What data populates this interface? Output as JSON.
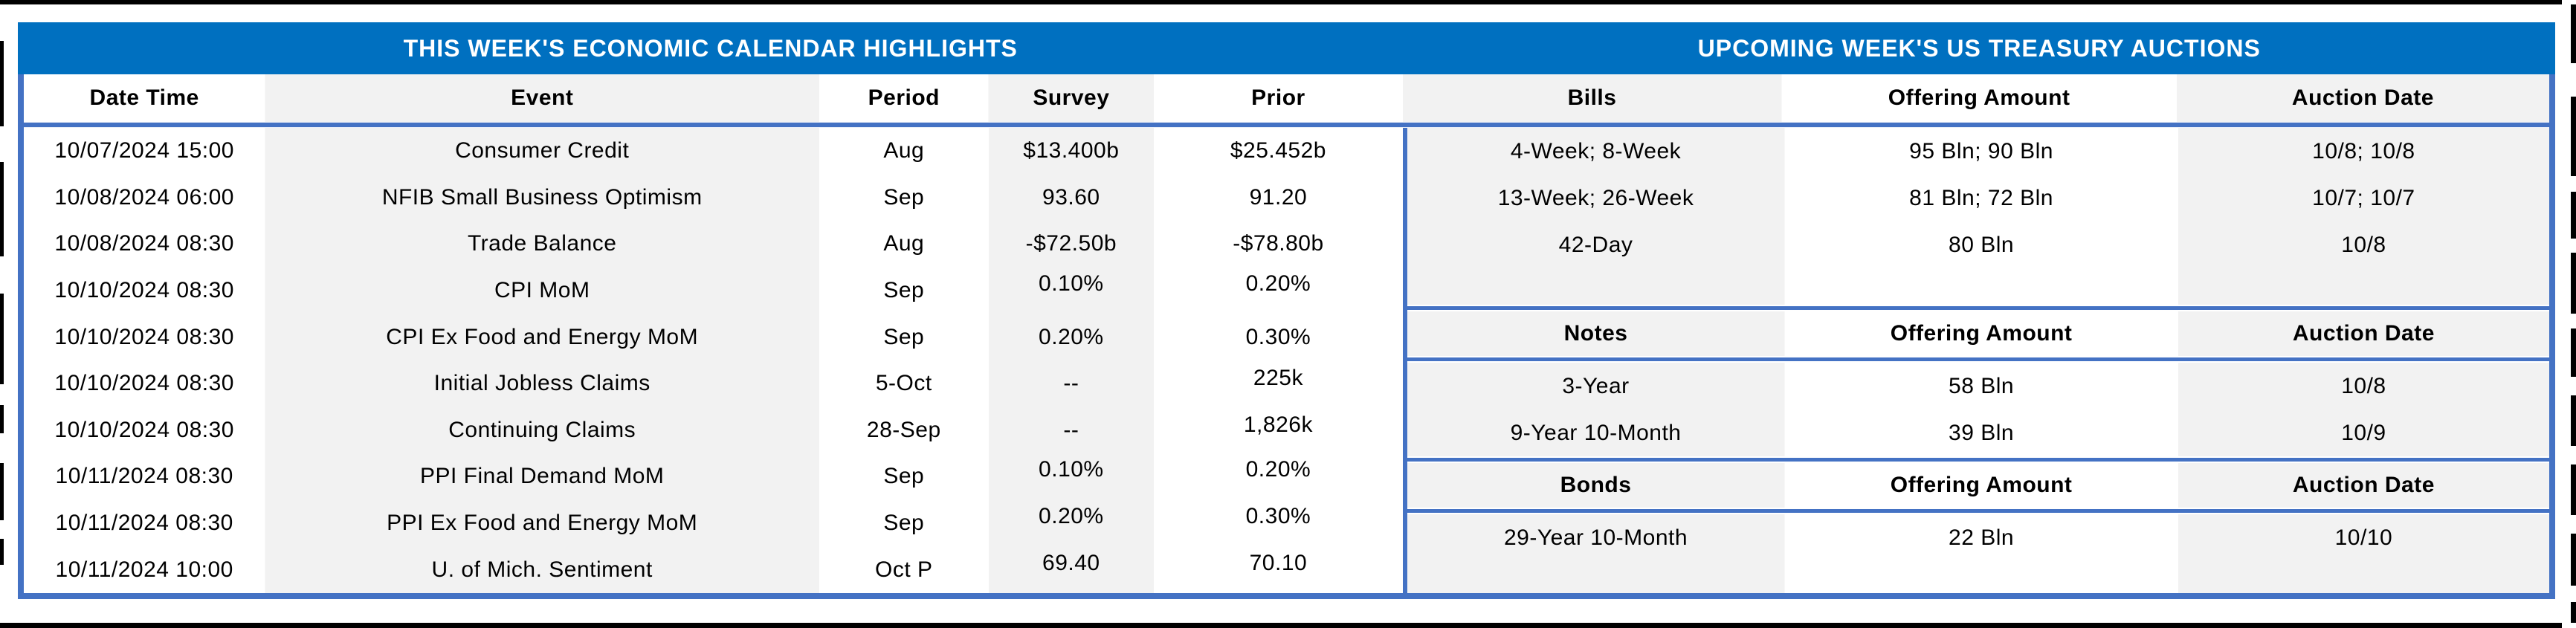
{
  "left_table": {
    "title": "THIS WEEK'S ECONOMIC CALENDAR HIGHLIGHTS",
    "columns": [
      "Date Time",
      "Event",
      "Period",
      "Survey",
      "Prior"
    ],
    "rows": [
      [
        "10/07/2024 15:00",
        "Consumer Credit",
        "Aug",
        "$13.400b",
        "$25.452b"
      ],
      [
        "10/08/2024 06:00",
        "NFIB Small Business Optimism",
        "Sep",
        "93.60",
        "91.20"
      ],
      [
        "10/08/2024 08:30",
        "Trade Balance",
        "Aug",
        "-$72.50b",
        "-$78.80b"
      ],
      [
        "10/10/2024 08:30",
        "CPI MoM",
        "Sep",
        "0.10%",
        "0.20%"
      ],
      [
        "10/10/2024 08:30",
        "CPI Ex Food and Energy MoM",
        "Sep",
        "0.20%",
        "0.30%"
      ],
      [
        "10/10/2024 08:30",
        "Initial Jobless Claims",
        "5-Oct",
        "--",
        "225k"
      ],
      [
        "10/10/2024 08:30",
        "Continuing Claims",
        "28-Sep",
        "--",
        "1,826k"
      ],
      [
        "10/11/2024 08:30",
        "PPI Final Demand MoM",
        "Sep",
        "0.10%",
        "0.20%"
      ],
      [
        "10/11/2024 08:30",
        "PPI Ex Food and Energy MoM",
        "Sep",
        "0.20%",
        "0.30%"
      ],
      [
        "10/11/2024 10:00",
        "U. of Mich. Sentiment",
        "Oct P",
        "69.40",
        "70.10"
      ]
    ]
  },
  "right_table": {
    "title": "UPCOMING WEEK'S US TREASURY AUCTIONS",
    "sections": [
      {
        "header": [
          "Bills",
          "Offering Amount",
          "Auction Date"
        ],
        "rows": [
          [
            "4-Week; 8-Week",
            "95 Bln; 90 Bln",
            "10/8; 10/8"
          ],
          [
            "13-Week; 26-Week",
            "81 Bln; 72 Bln",
            "10/7; 10/7"
          ],
          [
            "42-Day",
            "80 Bln",
            "10/8"
          ]
        ]
      },
      {
        "header": [
          "Notes",
          "Offering Amount",
          "Auction Date"
        ],
        "rows": [
          [
            "3-Year",
            "58 Bln",
            "10/8"
          ],
          [
            "9-Year 10-Month",
            "39 Bln",
            "10/9"
          ]
        ]
      },
      {
        "header": [
          "Bonds",
          "Offering Amount",
          "Auction Date"
        ],
        "rows": [
          [
            "29-Year 10-Month",
            "22 Bln",
            "10/10"
          ]
        ]
      }
    ]
  },
  "colors": {
    "title_bar_blue": "#0070C0",
    "table_border_blue": "#4472C4",
    "shaded_column_gray": "#F2F2F2",
    "title_text": "#FFFFFF",
    "body_text": "#000000"
  }
}
